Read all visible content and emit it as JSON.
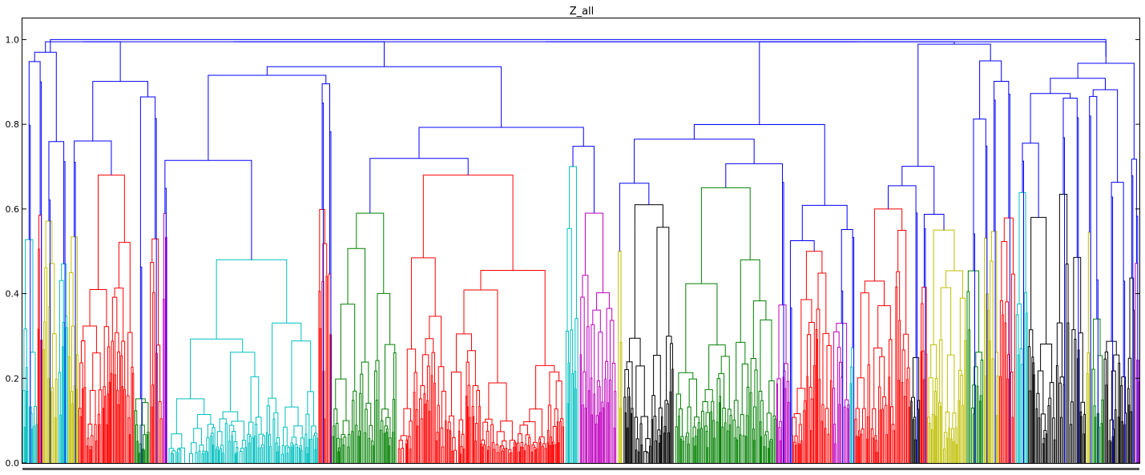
{
  "chart_data": {
    "type": "dendrogram",
    "title": "Z_all",
    "xlabel": "",
    "ylabel": "",
    "ylim": [
      0.0,
      1.05
    ],
    "yticks": [
      "0.0",
      "0.2",
      "0.4",
      "0.6",
      "0.8",
      "1.0"
    ],
    "ytick_values": [
      0.0,
      0.2,
      0.4,
      0.6,
      0.8,
      1.0
    ],
    "grid": false,
    "legend": "none",
    "colors": {
      "above_threshold": "#0000ff",
      "palette": [
        "#ff0000",
        "#008000",
        "#00bfbf",
        "#bf00bf",
        "#bfbf00",
        "#000000"
      ]
    },
    "clusters": [
      {
        "color": "#ff0000",
        "x_range": [
          0.05,
          0.1
        ],
        "height": 0.68
      },
      {
        "color": "#00bfbf",
        "x_range": [
          0.13,
          0.265
        ],
        "height": 0.48
      },
      {
        "color": "#008000",
        "x_range": [
          0.277,
          0.335
        ],
        "height": 0.59
      },
      {
        "color": "#ff0000",
        "x_range": [
          0.336,
          0.485
        ],
        "height": 0.68
      },
      {
        "color": "#00bfbf",
        "x_range": [
          0.486,
          0.498
        ],
        "height": 0.7
      },
      {
        "color": "#bf00bf",
        "x_range": [
          0.499,
          0.532
        ],
        "height": 0.59
      },
      {
        "color": "#bfbf00",
        "x_range": [
          0.533,
          0.537
        ],
        "height": 0.5
      },
      {
        "color": "#000000",
        "x_range": [
          0.538,
          0.583
        ],
        "height": 0.61
      },
      {
        "color": "#008000",
        "x_range": [
          0.584,
          0.675
        ],
        "height": 0.65
      },
      {
        "color": "#ff0000",
        "x_range": [
          0.688,
          0.725
        ],
        "height": 0.5
      },
      {
        "color": "#ff0000",
        "x_range": [
          0.745,
          0.795
        ],
        "height": 0.6
      },
      {
        "color": "#bfbf00",
        "x_range": [
          0.81,
          0.845
        ],
        "height": 0.55
      },
      {
        "color": "#000000",
        "x_range": [
          0.9,
          0.925
        ],
        "height": 0.58
      }
    ],
    "top_merges": [
      {
        "x": 0.152,
        "height": 0.995
      },
      {
        "x": 0.23,
        "height": 0.98
      },
      {
        "x": 0.4,
        "height": 0.96
      },
      {
        "x": 0.85,
        "height": 1.0
      },
      {
        "x": 0.5,
        "height": 0.94
      }
    ]
  }
}
